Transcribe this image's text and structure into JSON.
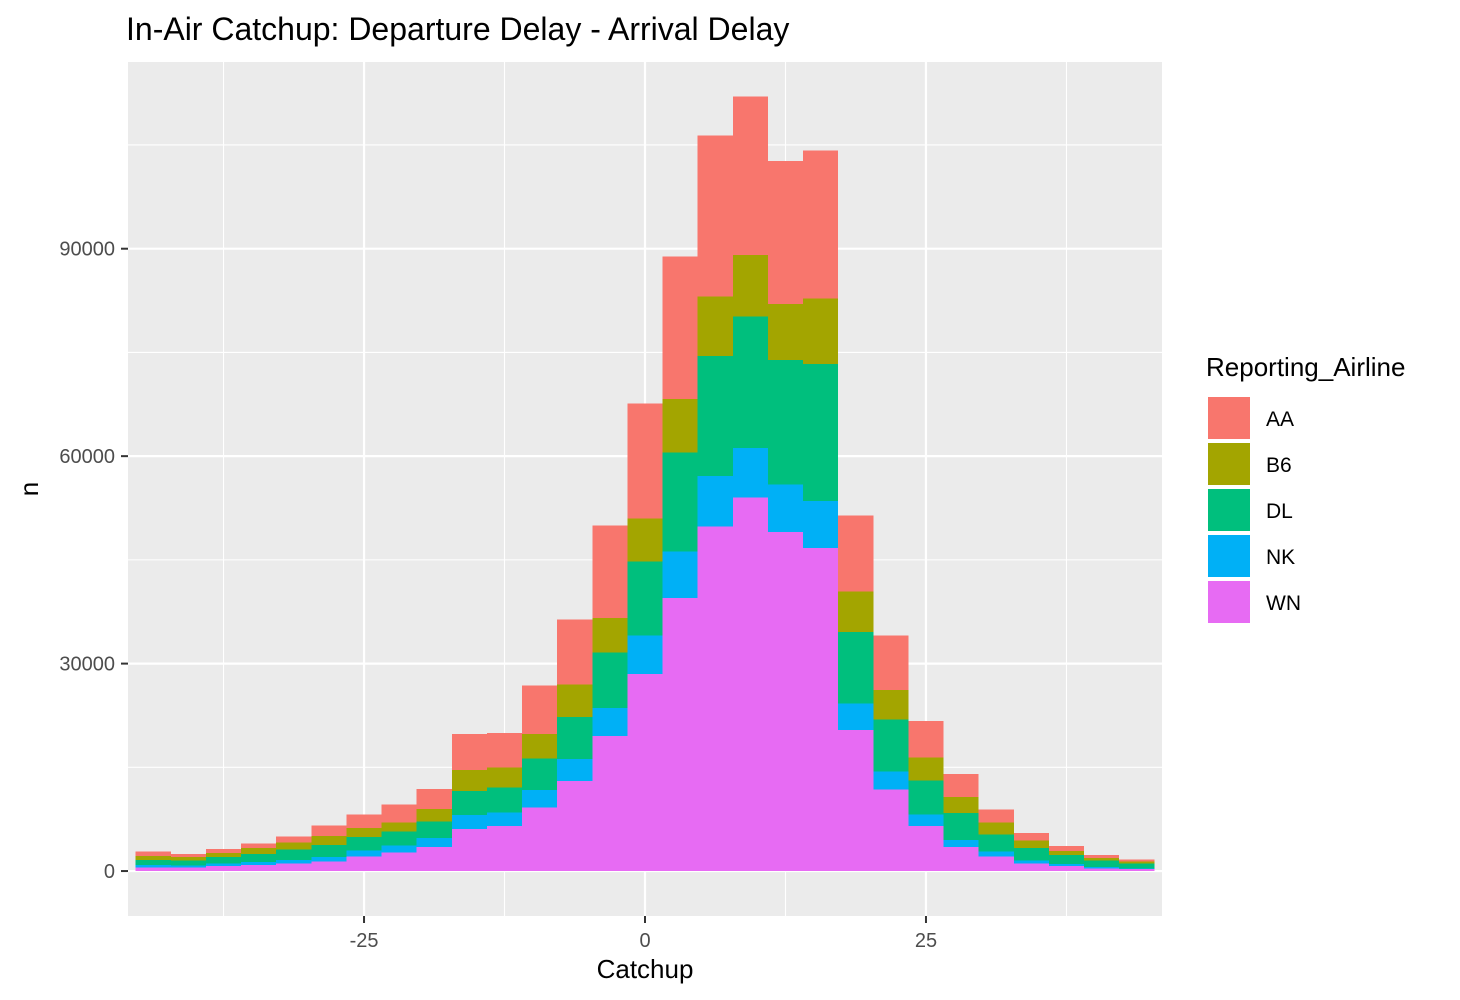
{
  "chart_data": {
    "type": "bar",
    "subtype": "stacked-histogram",
    "title": "In-Air Catchup: Departure Delay - Arrival Delay",
    "xlabel": "Catchup",
    "ylabel": "n",
    "xlim": [
      -46,
      46
    ],
    "ylim": [
      -6500,
      117000
    ],
    "x_ticks": [
      -25,
      0,
      25
    ],
    "x_tick_labels": [
      "-25",
      "0",
      "25"
    ],
    "y_ticks": [
      0,
      30000,
      60000,
      90000
    ],
    "y_tick_labels": [
      "0",
      "30000",
      "60000",
      "90000"
    ],
    "grid": true,
    "legend": {
      "title": "Reporting_Airline",
      "position": "right"
    },
    "bin_width": 3.125,
    "x": [
      -43.75,
      -40.625,
      -37.5,
      -34.375,
      -31.25,
      -28.125,
      -25,
      -21.875,
      -18.75,
      -15.625,
      -12.5,
      -9.375,
      -6.25,
      -3.125,
      0,
      3.125,
      6.25,
      9.375,
      12.5,
      15.625,
      18.75,
      21.875,
      25,
      28.125,
      31.25,
      34.375,
      37.5,
      40.625,
      43.75
    ],
    "series": [
      {
        "name": "WN",
        "color": "#E76BF3",
        "values": [
          500,
          500,
          700,
          900,
          1100,
          1400,
          2100,
          2700,
          3500,
          6100,
          6500,
          9200,
          13000,
          19500,
          28500,
          39500,
          49800,
          54000,
          49000,
          46700,
          20400,
          11800,
          6500,
          3500,
          2100,
          1100,
          700,
          400,
          300
        ]
      },
      {
        "name": "NK",
        "color": "#00B0F6",
        "values": [
          400,
          300,
          400,
          400,
          500,
          600,
          900,
          1000,
          1300,
          2000,
          2000,
          2500,
          3200,
          4100,
          5600,
          6700,
          7300,
          7200,
          6900,
          6800,
          3800,
          2600,
          1700,
          1000,
          700,
          400,
          300,
          200,
          100
        ]
      },
      {
        "name": "DL",
        "color": "#00BF7D",
        "values": [
          700,
          700,
          900,
          1200,
          1500,
          1800,
          1900,
          2000,
          2400,
          3500,
          3600,
          4600,
          6100,
          8000,
          10700,
          14300,
          17400,
          19000,
          18000,
          19800,
          10400,
          7500,
          4900,
          3900,
          2500,
          1800,
          1300,
          900,
          700
        ]
      },
      {
        "name": "B6",
        "color": "#A3A500",
        "values": [
          600,
          500,
          600,
          800,
          1000,
          1300,
          1300,
          1300,
          1800,
          3000,
          2900,
          3500,
          4700,
          5000,
          6200,
          7800,
          8600,
          8900,
          8100,
          9500,
          5800,
          4300,
          3300,
          2300,
          1700,
          1100,
          600,
          400,
          300
        ]
      },
      {
        "name": "AA",
        "color": "#F8766D",
        "values": [
          600,
          500,
          600,
          700,
          900,
          1500,
          2000,
          2600,
          2900,
          5200,
          5000,
          7000,
          9400,
          13400,
          16600,
          20600,
          23300,
          22900,
          20700,
          21400,
          11000,
          7900,
          5300,
          3300,
          1900,
          1100,
          700,
          400,
          300
        ]
      }
    ]
  }
}
